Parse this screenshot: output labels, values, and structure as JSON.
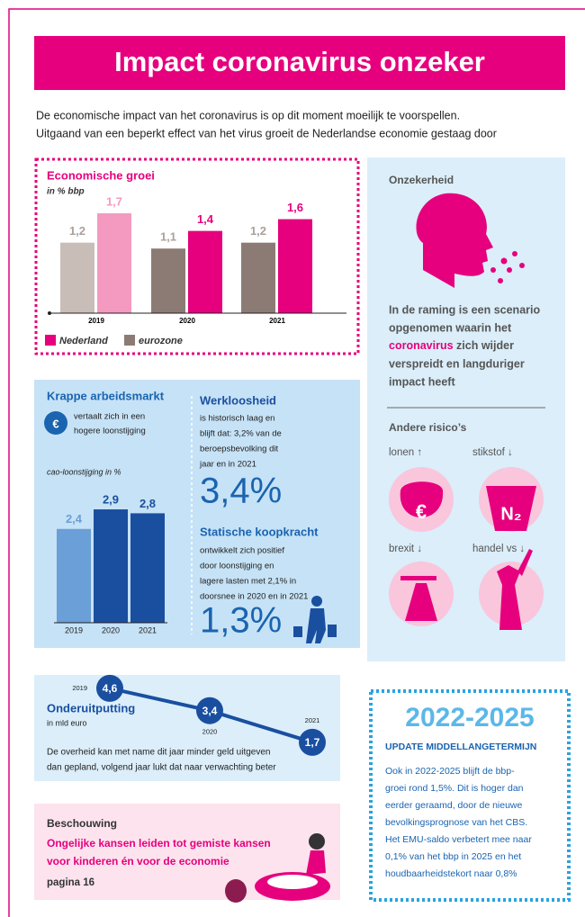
{
  "header": {
    "title": "Impact coronavirus onzeker",
    "intro": [
      "De economische impact van het coronavirus is op dit moment moeilijk te voorspellen.",
      "Uitgaand van een beperkt effect van het virus groeit de Nederlandse economie gestaag door"
    ]
  },
  "chart_data": [
    {
      "type": "bar",
      "title": "Economische groei",
      "subtitle": "in % bbp",
      "categories": [
        "2019",
        "2020",
        "2021"
      ],
      "ylim": [
        0,
        1.8
      ],
      "series": [
        {
          "name": "eurozone",
          "color": "#8c7b75",
          "colors": [
            "#c9bdb8",
            "#8c7b75",
            "#8c7b75"
          ],
          "values": [
            1.2,
            1.1,
            1.2
          ],
          "value_labels": [
            "1,2",
            "1,1",
            "1,2"
          ]
        },
        {
          "name": "Nederland",
          "color": "#e6007e",
          "colors": [
            "#f49ac1",
            "#e6007e",
            "#e6007e"
          ],
          "values": [
            1.7,
            1.4,
            1.6
          ],
          "value_labels": [
            "1,7",
            "1,4",
            "1,6"
          ]
        }
      ]
    },
    {
      "type": "bar",
      "subtitle": "cao-loonstijging in %",
      "categories": [
        "2019",
        "2020",
        "2021"
      ],
      "ylim": [
        0,
        3
      ],
      "colors": [
        "#6a9fd8",
        "#1a4fa0",
        "#1a4fa0"
      ],
      "values": [
        2.4,
        2.9,
        2.8
      ],
      "value_labels": [
        "2,4",
        "2,9",
        "2,8"
      ]
    },
    {
      "type": "line",
      "title": "Onderuitputting",
      "subtitle": "in mld euro",
      "categories": [
        "2019",
        "2020",
        "2021"
      ],
      "ylim": [
        0,
        5
      ],
      "color": "#1a4fa0",
      "values": [
        4.6,
        3.4,
        1.7
      ],
      "value_labels": [
        "4,6",
        "3,4",
        "1,7"
      ],
      "note": [
        "De overheid kan met name dit jaar minder geld uitgeven",
        "dan gepland, volgend jaar lukt dat naar verwachting beter"
      ]
    }
  ],
  "arbeidsmarkt": {
    "title": "Krappe arbeidsmarkt",
    "text": [
      "vertaalt zich in een",
      "hogere loonstijging"
    ],
    "icon": "€"
  },
  "werkloosheid": {
    "title": "Werkloosheid",
    "text": [
      "is historisch laag en",
      "blijft dat: 3,2% van de",
      "beroepsbevolking dit",
      "jaar en in 2021"
    ],
    "figure": "3,4%"
  },
  "koopkracht": {
    "title": "Statische koopkracht",
    "text": [
      "ontwikkelt zich positief",
      "door loonstijging en",
      "lagere lasten met 2,1% in",
      "doorsnee in 2020 en in 2021"
    ],
    "figure": "1,3%"
  },
  "onzekerheid": {
    "title": "Onzekerheid",
    "lines": [
      "In de raming is een scenario",
      "opgenomen waarin het",
      [
        "coronavirus",
        " zich wijder"
      ],
      "verspreidt en langduriger",
      "impact heeft"
    ],
    "risks_title": "Andere risico’s",
    "risks": [
      "lonen ↑",
      "stikstof ↓",
      "brexit ↓",
      "handel vs ↓"
    ],
    "icons": [
      "€",
      "N₂"
    ]
  },
  "middellang": {
    "title": "2022-2025",
    "subtitle": "UPDATE MIDDELLANGETERMIJN",
    "text": [
      "Ook in 2022-2025 blijft de bbp-",
      "groei rond 1,5%. Dit is hoger dan",
      "eerder geraamd, door de nieuwe",
      "bevolkingsprognose van het CBS.",
      "Het EMU-saldo verbetert mee naar",
      "0,1% van het bbp in 2025 en het",
      "houdbaarheidstekort naar 0,8%"
    ]
  },
  "beschouwing": {
    "kicker": "Beschouwing",
    "headline": [
      "Ongelijke kansen leiden tot gemiste kansen",
      "voor kinderen én voor de economie"
    ],
    "page": "pagina 16"
  }
}
